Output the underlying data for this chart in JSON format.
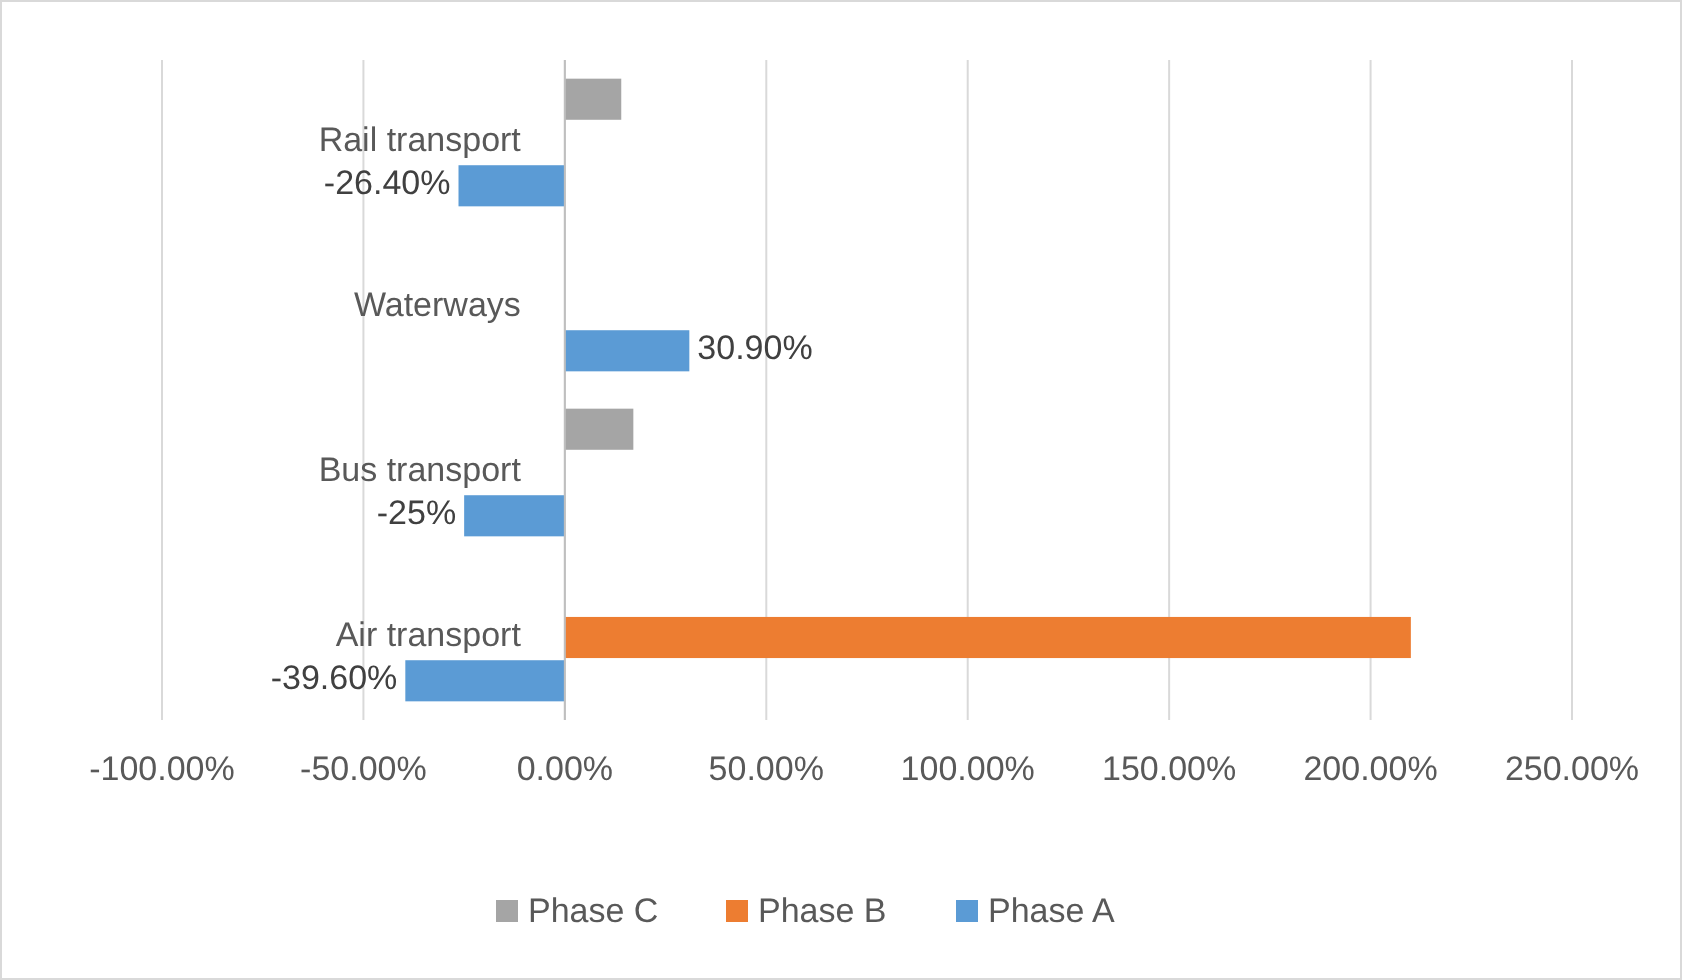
{
  "chart_data": {
    "type": "bar",
    "orientation": "horizontal",
    "categories": [
      "Rail transport",
      "Waterways",
      "Bus transport",
      "Air transport"
    ],
    "series": [
      {
        "name": "Phase A",
        "color": "#5b9bd5",
        "values": [
          -26.4,
          30.9,
          -25,
          -39.6
        ],
        "value_labels": [
          "-26.40%",
          "30.90%",
          "-25%",
          "-39.60%"
        ]
      },
      {
        "name": "Phase B",
        "color": "#ed7d31",
        "values": [
          null,
          null,
          null,
          210
        ]
      },
      {
        "name": "Phase C",
        "color": "#a5a5a5",
        "values": [
          14,
          null,
          17,
          null
        ]
      }
    ],
    "xlim": [
      -100,
      250
    ],
    "xticks": [
      {
        "value": -100,
        "label": "-100.00%"
      },
      {
        "value": -50,
        "label": "-50.00%"
      },
      {
        "value": 0,
        "label": "0.00%"
      },
      {
        "value": 50,
        "label": "50.00%"
      },
      {
        "value": 100,
        "label": "100.00%"
      },
      {
        "value": 150,
        "label": "150.00%"
      },
      {
        "value": 200,
        "label": "200.00%"
      },
      {
        "value": 250,
        "label": "250.00%"
      }
    ],
    "grid": "x",
    "legend": "bottom"
  }
}
